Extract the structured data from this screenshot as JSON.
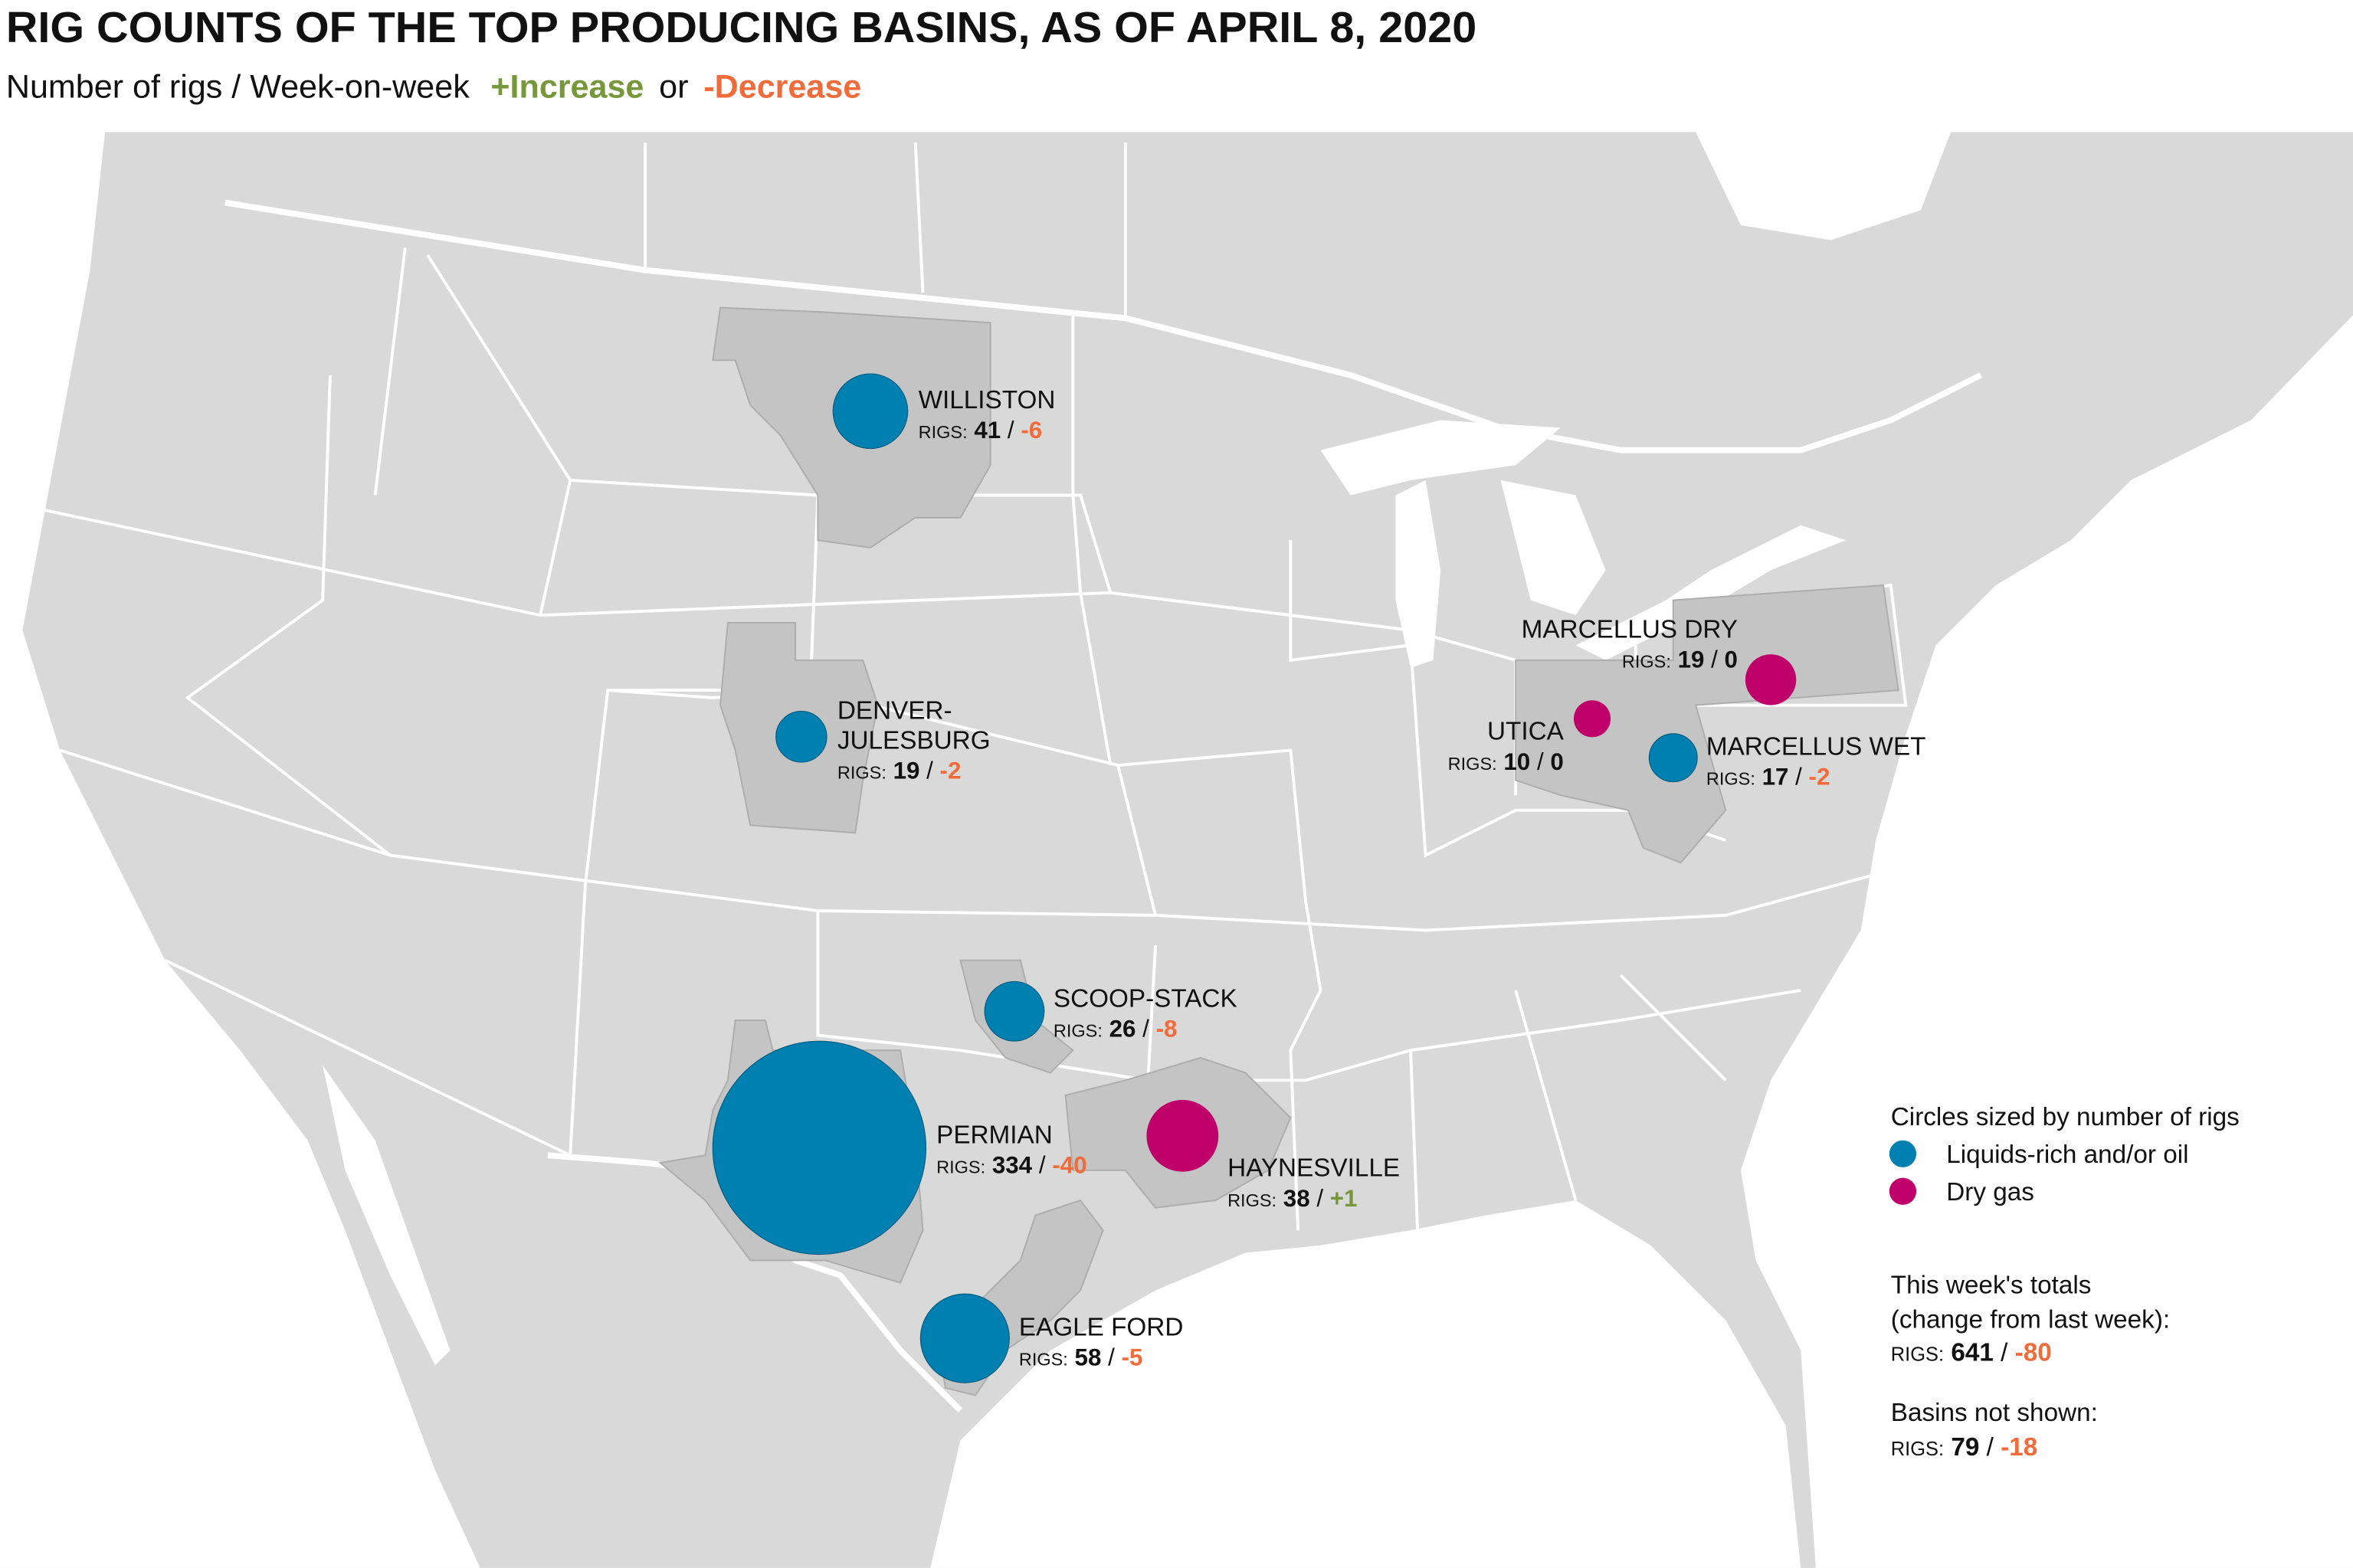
{
  "header": {
    "title": "RIG COUNTS OF THE TOP PRODUCING BASINS, AS OF APRIL 8, 2020",
    "subtitle_prefix": "Number of rigs / Week-on-week",
    "increase_label": "+Increase",
    "or_label": "or",
    "decrease_label": "-Decrease"
  },
  "colors": {
    "oil": "#0080b0",
    "gas": "#c0006a",
    "increase": "#76983a",
    "decrease": "#f26b3a",
    "land": "#d9d9d9",
    "basin": "#c4c4c4",
    "border": "#ffffff"
  },
  "rigs_label": "RIGS:",
  "basins": [
    {
      "name": "WILLISTON",
      "rigs": "41",
      "change": "-6",
      "type": "oil"
    },
    {
      "name": "DENVER-",
      "name2": "JULESBURG",
      "rigs": "19",
      "change": "-2",
      "type": "oil"
    },
    {
      "name": "SCOOP-STACK",
      "rigs": "26",
      "change": "-8",
      "type": "oil"
    },
    {
      "name": "PERMIAN",
      "rigs": "334",
      "change": "-40",
      "type": "oil"
    },
    {
      "name": "EAGLE FORD",
      "rigs": "58",
      "change": "-5",
      "type": "oil"
    },
    {
      "name": "HAYNESVILLE",
      "rigs": "38",
      "change": "+1",
      "type": "gas"
    },
    {
      "name": "UTICA",
      "rigs": "10",
      "change": "0",
      "type": "gas"
    },
    {
      "name": "MARCELLUS DRY",
      "rigs": "19",
      "change": "0",
      "type": "gas"
    },
    {
      "name": "MARCELLUS WET",
      "rigs": "17",
      "change": "-2",
      "type": "oil"
    }
  ],
  "legend": {
    "title": "Circles sized by number of rigs",
    "oil_label": "Liquids-rich and/or oil",
    "gas_label": "Dry gas"
  },
  "totals": {
    "line1": "This week's totals",
    "line2": "(change from last week):",
    "rigs": "641",
    "change": "-80"
  },
  "not_shown": {
    "label": "Basins not shown:",
    "rigs": "79",
    "change": "-18"
  }
}
